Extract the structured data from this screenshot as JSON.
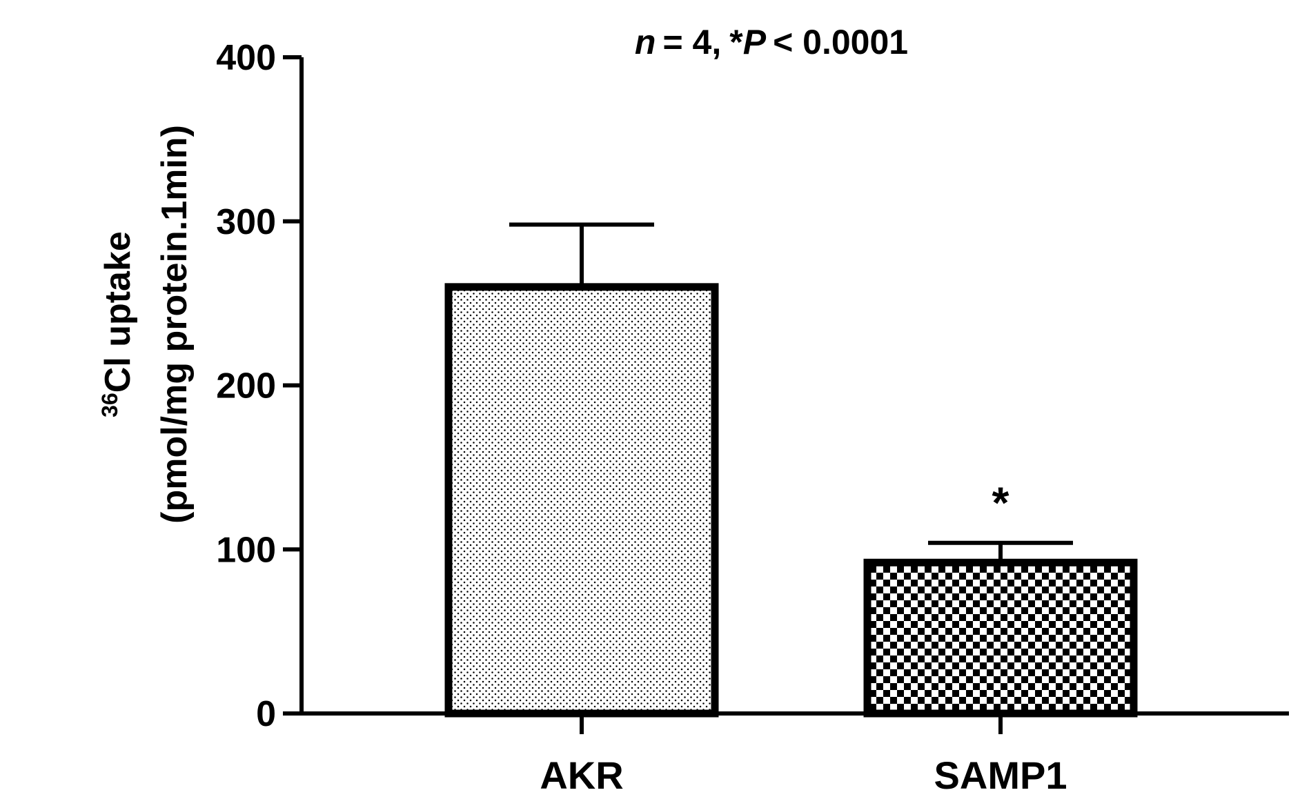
{
  "chart_data": {
    "type": "bar",
    "annotation": {
      "n_label": "n",
      "n_value": "= 4,",
      "p_star": "*",
      "p_label": "P",
      "p_value": "< 0.0001"
    },
    "ylabel": {
      "isotope_mass": "36",
      "line1": "Cl uptake",
      "line2": "(pmol/mg protein.1min)"
    },
    "ylim": [
      0,
      400
    ],
    "yticks": [
      0,
      100,
      200,
      300,
      400
    ],
    "categories": [
      "AKR",
      "SAMP1"
    ],
    "values": [
      260,
      92
    ],
    "error_upper": [
      298,
      104
    ],
    "fill_patterns": [
      "dots",
      "checkerboard"
    ],
    "significance": [
      "",
      "*"
    ],
    "colors": {
      "ink": "#000000",
      "background": "#ffffff"
    }
  }
}
